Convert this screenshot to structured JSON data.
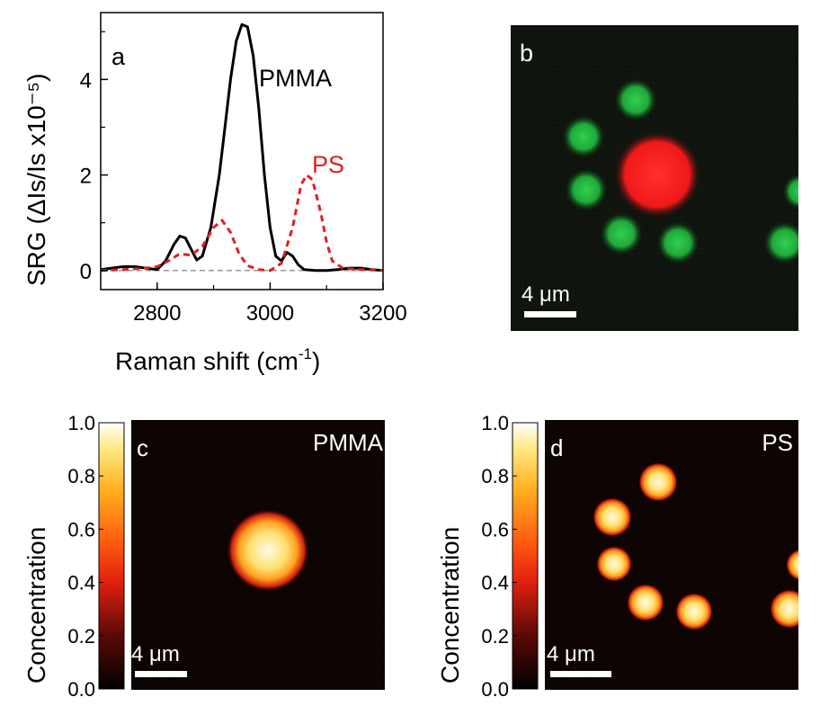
{
  "colors": {
    "pmma_line": "#000000",
    "ps_line": "#e02020",
    "baseline": "#999999",
    "green_bead": "#22c040",
    "red_bead": "#ff2020",
    "map_background": "#0c0402"
  },
  "chart_data": [
    {
      "panel": "a",
      "type": "line",
      "xlabel": "Raman shift (cm",
      "xlabel_sup": "-1",
      "xlabel_end": ")",
      "ylabel": "SRG (ΔIs/Is x10⁻⁵)",
      "xlim": [
        2700,
        3200
      ],
      "ylim": [
        -0.4,
        5.4
      ],
      "xticks": [
        "2800",
        "3000",
        "3200"
      ],
      "xtick_values": [
        2800,
        3000,
        3200
      ],
      "yticks": [
        "0",
        "2",
        "4"
      ],
      "ytick_values": [
        0,
        2,
        4
      ],
      "series": [
        {
          "name": "PMMA",
          "x": [
            2700,
            2720,
            2740,
            2760,
            2780,
            2800,
            2815,
            2830,
            2840,
            2850,
            2860,
            2870,
            2880,
            2895,
            2910,
            2920,
            2930,
            2940,
            2950,
            2960,
            2970,
            2980,
            2990,
            3000,
            3010,
            3020,
            3030,
            3040,
            3050,
            3060,
            3080,
            3100,
            3120,
            3140,
            3160,
            3180,
            3200
          ],
          "y": [
            0.02,
            0.05,
            0.08,
            0.08,
            0.05,
            0.02,
            0.2,
            0.55,
            0.72,
            0.68,
            0.45,
            0.22,
            0.3,
            0.9,
            2.0,
            3.0,
            4.0,
            4.8,
            5.15,
            5.1,
            4.5,
            3.4,
            2.0,
            0.9,
            0.3,
            0.2,
            0.38,
            0.3,
            0.12,
            0.02,
            0.0,
            0.0,
            0.02,
            0.05,
            0.05,
            0.02,
            0.0
          ]
        },
        {
          "name": "PS",
          "dashed": true,
          "x": [
            2700,
            2740,
            2780,
            2800,
            2820,
            2840,
            2860,
            2880,
            2900,
            2915,
            2930,
            2945,
            2960,
            2980,
            3000,
            3020,
            3040,
            3055,
            3065,
            3075,
            3090,
            3100,
            3110,
            3130,
            3160,
            3200
          ],
          "y": [
            0.0,
            0.02,
            0.05,
            0.08,
            0.2,
            0.35,
            0.32,
            0.5,
            0.9,
            1.05,
            0.8,
            0.35,
            0.1,
            0.02,
            0.0,
            0.15,
            0.9,
            1.8,
            2.0,
            1.9,
            1.2,
            0.6,
            0.2,
            0.04,
            0.02,
            0.0
          ]
        }
      ]
    },
    {
      "panel": "b",
      "type": "image",
      "scalebar": "4 μm",
      "scalebar_um": 4
    },
    {
      "panel": "c",
      "type": "heatmap",
      "label": "PMMA",
      "colorbar_label": "Concentration",
      "colorbar_ticks": [
        "0.0",
        "0.2",
        "0.4",
        "0.6",
        "0.8",
        "1.0"
      ],
      "colorbar_range": [
        0,
        1
      ],
      "scalebar": "4 μm"
    },
    {
      "panel": "d",
      "type": "heatmap",
      "label": "PS",
      "colorbar_label": "Concentration",
      "colorbar_ticks": [
        "0.0",
        "0.2",
        "0.4",
        "0.6",
        "0.8",
        "1.0"
      ],
      "colorbar_range": [
        0,
        1
      ],
      "scalebar": "4 μm"
    }
  ],
  "panel_letters": {
    "a": "a",
    "b": "b",
    "c": "c",
    "d": "d"
  },
  "legend": {
    "pmma": "PMMA",
    "ps": "PS"
  },
  "scale_units": "4 μm"
}
